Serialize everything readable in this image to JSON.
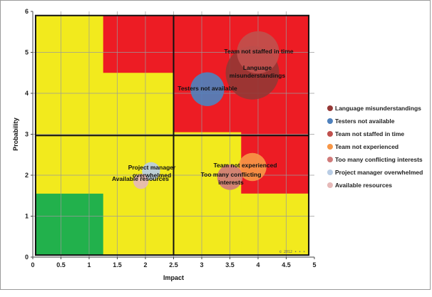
{
  "chart_data": {
    "type": "scatter",
    "subtype": "bubble-risk-matrix",
    "xlabel": "Impact",
    "ylabel": "Probability",
    "xlim": [
      0,
      5
    ],
    "ylim": [
      0,
      6
    ],
    "xticks": [
      "0",
      "0.5",
      "1",
      "1.5",
      "2",
      "2.5",
      "3",
      "3.5",
      "4",
      "4.5",
      "5"
    ],
    "yticks": [
      "0",
      "1",
      "2",
      "3",
      "4",
      "5",
      "6"
    ],
    "zones": [
      {
        "name": "low",
        "color": "#22b14c",
        "x": [
          0.05,
          1.25
        ],
        "y": [
          0.05,
          1.55
        ]
      },
      {
        "name": "high-top",
        "color": "#ed1c24",
        "x": [
          1.25,
          4.9
        ],
        "y": [
          4.5,
          5.9
        ]
      },
      {
        "name": "high-right",
        "color": "#ed1c24",
        "x": [
          2.5,
          4.9
        ],
        "y": [
          1.55,
          5.9
        ]
      }
    ],
    "series": [
      {
        "name": "Language misunderstandings",
        "x": 3.9,
        "y": 4.5,
        "size": 0.95,
        "color": "#953735",
        "label": [
          "Language",
          "misunderstandings"
        ]
      },
      {
        "name": "Testers not available",
        "x": 3.1,
        "y": 4.1,
        "size": 0.6,
        "color": "#4f81bd",
        "label": [
          "Testers not available"
        ]
      },
      {
        "name": "Team not staffed in time",
        "x": 4.0,
        "y": 5.0,
        "size": 0.75,
        "color": "#c0504d",
        "label": [
          "Team not staffed in time"
        ]
      },
      {
        "name": "Team not experienced",
        "x": 3.9,
        "y": 2.2,
        "size": 0.5,
        "color": "#f79646",
        "label": [
          "Team not experienced"
        ]
      },
      {
        "name": "Too many conflicting interests",
        "x": 3.5,
        "y": 1.95,
        "size": 0.45,
        "color": "#d07b7a",
        "label": [
          "Too many conflicting",
          "interests"
        ]
      },
      {
        "name": "Project manager overwhelmed",
        "x": 2.1,
        "y": 2.1,
        "size": 0.32,
        "color": "#b9cde5",
        "label": [
          "Project manager",
          "overwhelmed"
        ]
      },
      {
        "name": "Available resources",
        "x": 1.92,
        "y": 1.85,
        "size": 0.27,
        "color": "#e6b9b8",
        "label": [
          "Available resources"
        ]
      }
    ],
    "watermark": "© 2012 • • •"
  }
}
